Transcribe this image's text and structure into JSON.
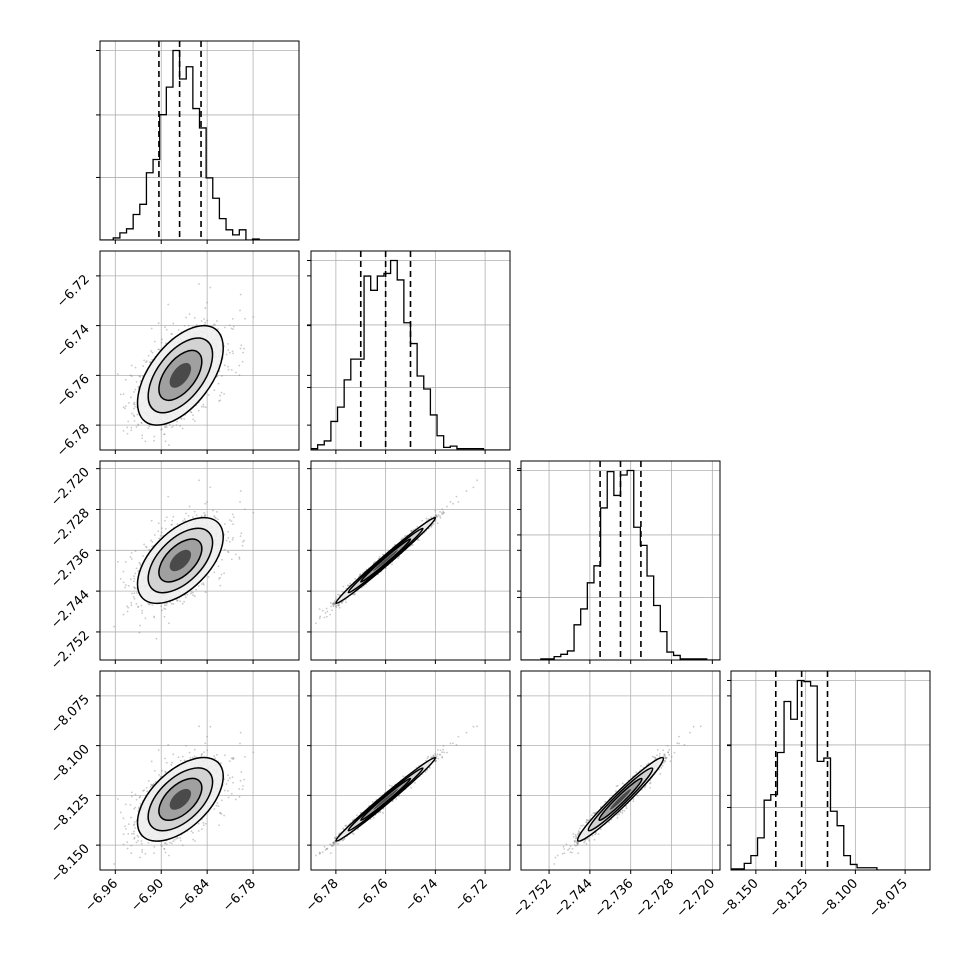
{
  "chart_data": {
    "type": "corner",
    "title": "",
    "parameters": [
      "",
      "",
      "",
      ""
    ],
    "means": [
      -6.875,
      -6.76,
      -2.738,
      -8.127
    ],
    "sigmas": [
      0.028,
      0.01,
      0.0042,
      0.0105
    ],
    "correlations": [
      [
        1,
        0.55,
        0.55,
        0.55
      ],
      [
        0.55,
        1,
        0.99,
        0.99
      ],
      [
        0.55,
        0.99,
        1,
        0.97
      ],
      [
        0.55,
        0.99,
        0.97,
        1
      ]
    ],
    "quantiles": [
      [
        -6.903,
        -6.876,
        -6.848
      ],
      [
        -6.77,
        -6.76,
        -6.75
      ],
      [
        -2.742,
        -2.738,
        -2.734
      ],
      [
        -8.14,
        -8.127,
        -8.114
      ]
    ],
    "axis_ranges": [
      [
        -6.98,
        -6.72
      ],
      [
        -6.79,
        -6.71
      ],
      [
        -2.7575,
        -2.7185
      ],
      [
        -8.1625,
        -8.0625
      ]
    ],
    "x_ticks": [
      [
        "−6.96",
        "−6.90",
        "−6.84",
        "−6.78"
      ],
      [
        "−6.78",
        "−6.76",
        "−6.74",
        "−6.72"
      ],
      [
        "−2.752",
        "−2.744",
        "−2.736",
        "−2.728",
        "−2.720"
      ],
      [
        "−8.150",
        "−8.125",
        "−8.100",
        "−8.075"
      ]
    ],
    "x_tick_values": [
      [
        -6.96,
        -6.9,
        -6.84,
        -6.78
      ],
      [
        -6.78,
        -6.76,
        -6.74,
        -6.72
      ],
      [
        -2.752,
        -2.744,
        -2.736,
        -2.728,
        -2.72
      ],
      [
        -8.15,
        -8.125,
        -8.1,
        -8.075
      ]
    ],
    "y_ticks": [
      [],
      [
        "−6.72",
        "−6.74",
        "−6.76",
        "−6.78"
      ],
      [
        "−2.720",
        "−2.728",
        "−2.736",
        "−2.744",
        "−2.752"
      ],
      [
        "−8.075",
        "−8.100",
        "−8.125",
        "−8.150"
      ]
    ],
    "y_tick_values": [
      [],
      [
        -6.72,
        -6.74,
        -6.76,
        -6.78
      ],
      [
        -2.72,
        -2.728,
        -2.736,
        -2.744,
        -2.752
      ],
      [
        -8.075,
        -8.1,
        -8.125,
        -8.15
      ]
    ],
    "grid": true,
    "colors": {
      "points": "#888888",
      "contour": "#000000",
      "density": "#000000"
    }
  }
}
